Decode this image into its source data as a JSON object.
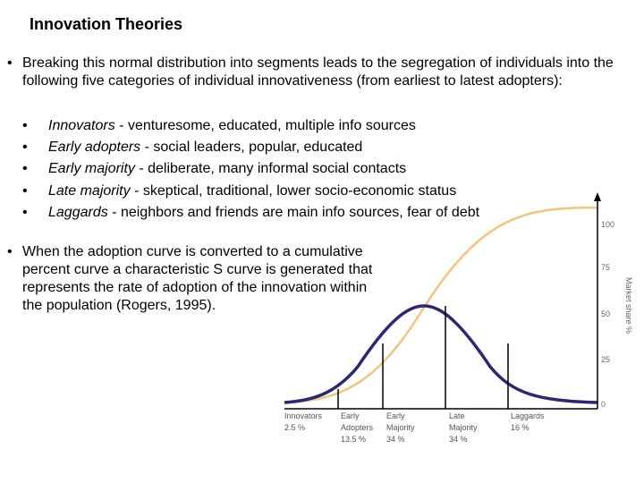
{
  "slide": {
    "title": "Innovation Theories",
    "bullet1": "Breaking this normal distribution into segments leads to the segregation of individuals into the following five categories of individual innovativeness (from earliest to latest adopters):",
    "categories": [
      {
        "name": "Innovators",
        "desc": " - venturesome, educated, multiple info sources"
      },
      {
        "name": "Early adopters",
        "desc": " - social leaders, popular, educated"
      },
      {
        "name": "Early majority",
        "desc": " - deliberate, many informal social contacts"
      },
      {
        "name": "Late majority",
        "desc": " - skeptical, traditional, lower socio-economic status"
      },
      {
        "name": "Laggards",
        "desc": " - neighbors and friends are main info sources, fear of debt"
      }
    ],
    "bullet2": "When the adoption curve is converted to a cumulative percent curve a characteristic S curve is generated that represents the rate of adoption of the innovation within the population (Rogers, 1995).",
    "bullet_char": "•"
  },
  "diagram": {
    "y_axis_label": "Market share %",
    "y_ticks": [
      "100",
      "75",
      "50",
      "25",
      "0"
    ],
    "segments": [
      {
        "line1": "Innovators",
        "line2": "2.5 %",
        "line3": ""
      },
      {
        "line1": "Early",
        "line2": "Adopters",
        "line3": "13.5 %"
      },
      {
        "line1": "Early",
        "line2": "Majority",
        "line3": "34 %"
      },
      {
        "line1": "Late",
        "line2": "Majority",
        "line3": "34 %"
      },
      {
        "line1": "Laggards",
        "line2": "16 %",
        "line3": ""
      }
    ],
    "colors": {
      "bell": "#2a2873",
      "s_curve": "#f2c57c",
      "axis": "#000000",
      "tick_text": "#666666"
    }
  }
}
